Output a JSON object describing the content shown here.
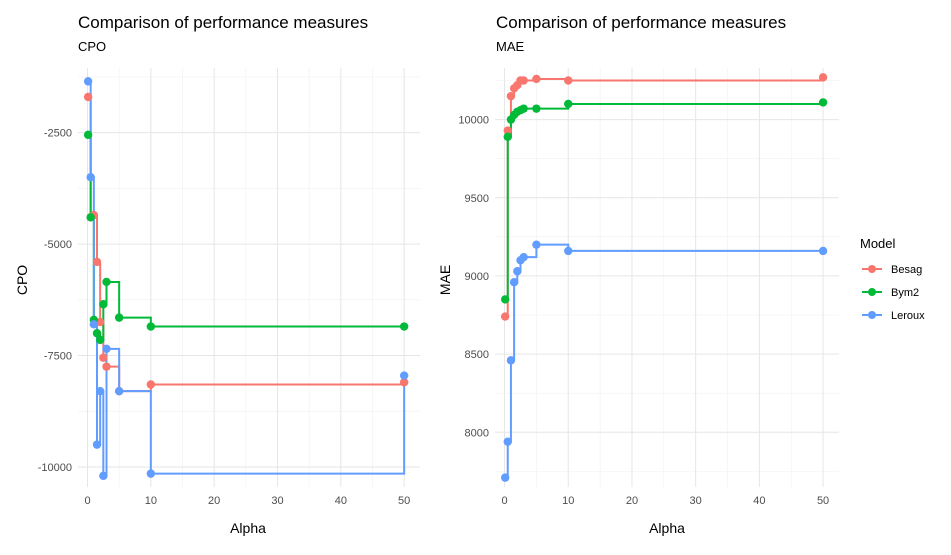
{
  "figure_title": "Comparison of performance measures",
  "legend": {
    "title": "Model",
    "items": [
      {
        "label": "Besag",
        "color": "#F8766D"
      },
      {
        "label": "Bym2",
        "color": "#00BA38"
      },
      {
        "label": "Leroux",
        "color": "#619CFF"
      }
    ]
  },
  "chart_data": [
    {
      "type": "line",
      "title": "Comparison of performance measures",
      "subtitle": "CPO",
      "xlabel": "Alpha",
      "ylabel": "CPO",
      "xlim": [
        -1.5,
        52.5
      ],
      "ylim": [
        -10450,
        -1050
      ],
      "xticks": [
        0,
        10,
        20,
        30,
        40,
        50
      ],
      "yticks": [
        -2500,
        -5000,
        -7500,
        -10000
      ],
      "ytick_labels": [
        "-2500",
        "-5000",
        "-7500",
        "-10000"
      ],
      "grid": true,
      "step": true,
      "series": [
        {
          "name": "Besag",
          "color": "#F8766D",
          "x": [
            0.1,
            0.5,
            1,
            1.5,
            2,
            2.5,
            3,
            5,
            10,
            50
          ],
          "y": [
            -1700,
            -4400,
            -4350,
            -5400,
            -6750,
            -7550,
            -7750,
            -8300,
            -8150,
            -8100
          ]
        },
        {
          "name": "Bym2",
          "color": "#00BA38",
          "x": [
            0.1,
            0.5,
            1,
            1.5,
            2,
            2.5,
            3,
            5,
            10,
            50
          ],
          "y": [
            -2550,
            -4400,
            -6700,
            -7000,
            -7150,
            -6350,
            -5850,
            -6650,
            -6850,
            -6850
          ]
        },
        {
          "name": "Leroux",
          "color": "#619CFF",
          "x": [
            0.1,
            0.5,
            1,
            1.5,
            2,
            2.5,
            3,
            5,
            10,
            50
          ],
          "y": [
            -1350,
            -3500,
            -6800,
            -9500,
            -8300,
            -10200,
            -7350,
            -8300,
            -10150,
            -7950
          ]
        }
      ]
    },
    {
      "type": "line",
      "title": "Comparison of performance measures",
      "subtitle": "MAE",
      "xlabel": "Alpha",
      "ylabel": "MAE",
      "xlim": [
        -1.5,
        52.5
      ],
      "ylim": [
        7650,
        10330
      ],
      "xticks": [
        0,
        10,
        20,
        30,
        40,
        50
      ],
      "yticks": [
        8000,
        8500,
        9000,
        9500,
        10000
      ],
      "ytick_labels": [
        "8000",
        "8500",
        "9000",
        "9500",
        "10000"
      ],
      "grid": true,
      "step": true,
      "series": [
        {
          "name": "Besag",
          "color": "#F8766D",
          "x": [
            0.1,
            0.5,
            1,
            1.5,
            2,
            2.5,
            3,
            5,
            10,
            50
          ],
          "y": [
            8740,
            9930,
            10150,
            10200,
            10220,
            10250,
            10250,
            10260,
            10250,
            10270
          ]
        },
        {
          "name": "Bym2",
          "color": "#00BA38",
          "x": [
            0.1,
            0.5,
            1,
            1.5,
            2,
            2.5,
            3,
            5,
            10,
            50
          ],
          "y": [
            8850,
            9890,
            10000,
            10030,
            10050,
            10060,
            10070,
            10070,
            10100,
            10110
          ]
        },
        {
          "name": "Leroux",
          "color": "#619CFF",
          "x": [
            0.1,
            0.5,
            1,
            1.5,
            2,
            2.5,
            3,
            5,
            10,
            50
          ],
          "y": [
            7710,
            7940,
            8460,
            8960,
            9030,
            9100,
            9120,
            9200,
            9160,
            9160
          ]
        }
      ]
    }
  ]
}
